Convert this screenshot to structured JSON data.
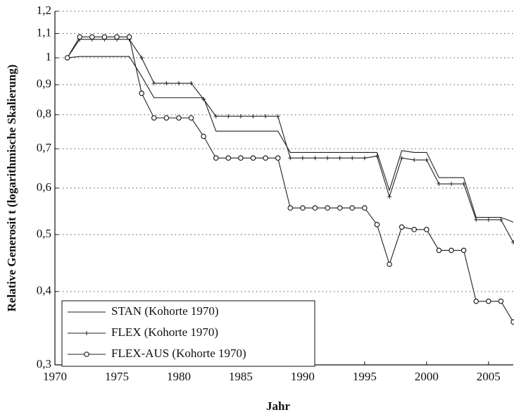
{
  "chart_data": {
    "type": "line",
    "x": [
      1971,
      1972,
      1973,
      1974,
      1975,
      1976,
      1977,
      1978,
      1979,
      1980,
      1981,
      1982,
      1983,
      1984,
      1985,
      1986,
      1987,
      1988,
      1989,
      1990,
      1991,
      1992,
      1993,
      1994,
      1995,
      1996,
      1997,
      1998,
      1999,
      2000,
      2001,
      2002,
      2003,
      2004,
      2005,
      2006,
      2007
    ],
    "series": [
      {
        "name": "STAN (Kohorte 1970)",
        "color": "#222222",
        "marker": "none",
        "values": [
          1.0,
          1.005,
          1.005,
          1.005,
          1.005,
          1.005,
          0.93,
          0.855,
          0.855,
          0.855,
          0.855,
          0.855,
          0.75,
          0.75,
          0.75,
          0.75,
          0.75,
          0.75,
          0.69,
          0.69,
          0.69,
          0.69,
          0.69,
          0.69,
          0.69,
          0.69,
          0.595,
          0.695,
          0.69,
          0.69,
          0.625,
          0.625,
          0.625,
          0.535,
          0.535,
          0.535,
          0.525
        ]
      },
      {
        "name": "FLEX (Kohorte 1970)",
        "color": "#222222",
        "marker": "plus",
        "values": [
          1.0,
          1.075,
          1.075,
          1.075,
          1.075,
          1.075,
          1.0,
          0.905,
          0.905,
          0.905,
          0.905,
          0.85,
          0.795,
          0.795,
          0.795,
          0.795,
          0.795,
          0.795,
          0.675,
          0.675,
          0.675,
          0.675,
          0.675,
          0.675,
          0.675,
          0.68,
          0.58,
          0.675,
          0.67,
          0.67,
          0.61,
          0.61,
          0.61,
          0.53,
          0.53,
          0.53,
          0.485
        ]
      },
      {
        "name": "FLEX-AUS (Kohorte 1970)",
        "color": "#222222",
        "marker": "circle",
        "values": [
          1.0,
          1.085,
          1.085,
          1.085,
          1.085,
          1.085,
          0.87,
          0.79,
          0.79,
          0.79,
          0.79,
          0.735,
          0.675,
          0.675,
          0.675,
          0.675,
          0.675,
          0.675,
          0.555,
          0.555,
          0.555,
          0.555,
          0.555,
          0.555,
          0.555,
          0.52,
          0.445,
          0.515,
          0.51,
          0.51,
          0.47,
          0.47,
          0.47,
          0.385,
          0.385,
          0.385,
          0.355
        ]
      }
    ],
    "xlabel": "Jahr",
    "ylabel": "Relative Generosit t (logarithmische Skalierung)",
    "xlim": [
      1970,
      2007
    ],
    "xticks": [
      1970,
      1975,
      1980,
      1985,
      1990,
      1995,
      2000,
      2005
    ],
    "ylim": [
      0.3,
      1.2
    ],
    "ylog": true,
    "yticks": [
      {
        "value": 0.3,
        "label": "0,3"
      },
      {
        "value": 0.4,
        "label": "0,4"
      },
      {
        "value": 0.5,
        "label": "0,5"
      },
      {
        "value": 0.6,
        "label": "0,6"
      },
      {
        "value": 0.7,
        "label": "0,7"
      },
      {
        "value": 0.8,
        "label": "0,8"
      },
      {
        "value": 0.9,
        "label": "0,9"
      },
      1,
      {
        "value": 1.1,
        "label": "1,1"
      },
      {
        "value": 1.2,
        "label": "1,2"
      }
    ],
    "grid": true,
    "legend": "lower left"
  }
}
